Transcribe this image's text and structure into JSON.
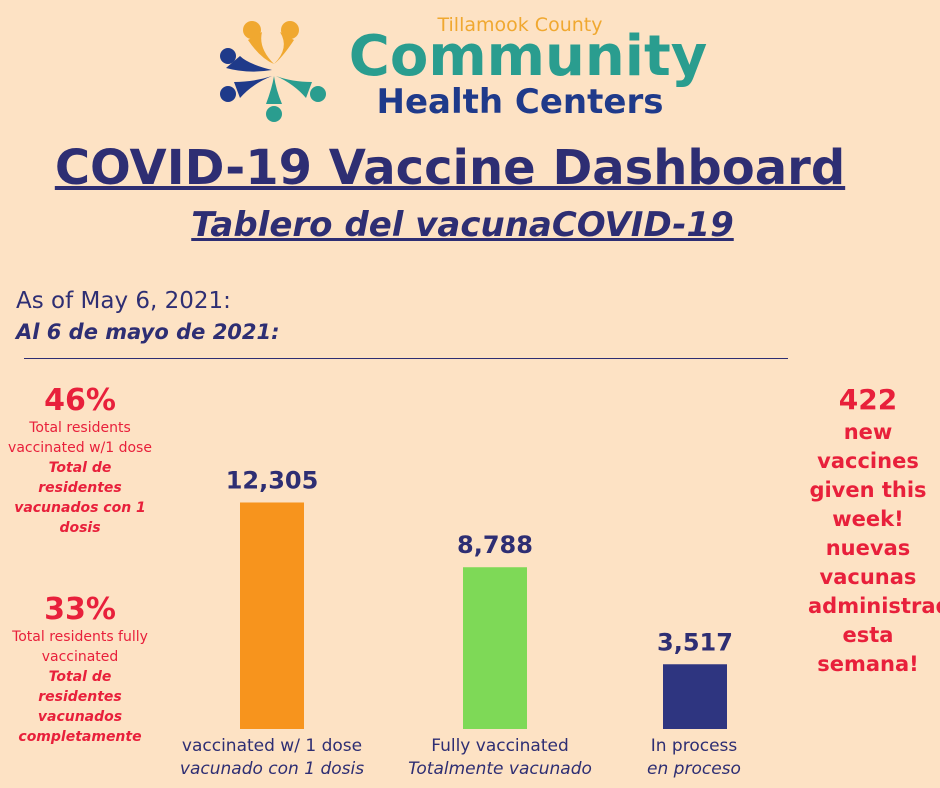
{
  "logo": {
    "county": "Tillamook County",
    "community": "Community",
    "health_centers": "Health Centers",
    "colors": {
      "orange": "#f0a830",
      "teal": "#2a9d8f",
      "navy": "#1f3a8a"
    }
  },
  "header": {
    "title": "COVID-19 Vaccine Dashboard",
    "subtitle": "Tablero del vacunaCOVID-19"
  },
  "as_of": {
    "en": "As of May 6, 2021:",
    "es": "Al 6 de mayo de 2021:"
  },
  "stats": {
    "one_dose": {
      "percent": "46%",
      "en": "Total residents vaccinated w/1 dose",
      "es": "Total de residentes vacunados con 1 dosis"
    },
    "fully": {
      "percent": "33%",
      "en": "Total residents fully vaccinated",
      "es": "Total de residentes vacunados completamente"
    }
  },
  "weekly": {
    "number": "422",
    "en": "new vaccines given this week!",
    "es": "nuevas vacunas administradas esta semana!"
  },
  "chart_data": {
    "type": "bar",
    "categories": [
      "vaccinated w/ 1 dose",
      "Fully vaccinated",
      "In process"
    ],
    "categories_es": [
      "vacunado con 1 dosis",
      "Totalmente vacunado",
      "en proceso"
    ],
    "values": [
      12305,
      8788,
      3517
    ],
    "value_labels": [
      "12,305",
      "8,788",
      "3,517"
    ],
    "colors": [
      "#f7941d",
      "#7ed957",
      "#2e3580"
    ],
    "ylim": [
      0,
      15700
    ],
    "grid": false,
    "legend": "none"
  }
}
